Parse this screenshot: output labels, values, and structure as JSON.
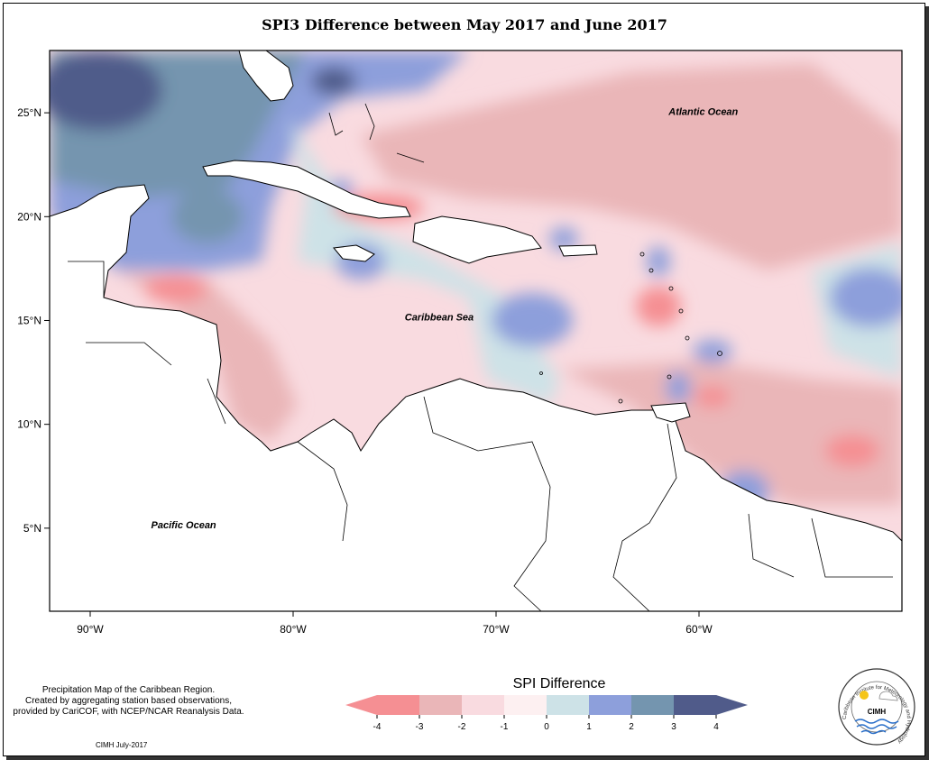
{
  "title": "SPI3 Difference between May 2017 and June 2017",
  "map": {
    "lon_range": [
      -92,
      -50
    ],
    "lat_range": [
      1,
      28
    ],
    "x_ticks": [
      {
        "value": -90,
        "label": "90°W"
      },
      {
        "value": -80,
        "label": "80°W"
      },
      {
        "value": -70,
        "label": "70°W"
      },
      {
        "value": -60,
        "label": "60°W"
      }
    ],
    "y_ticks": [
      {
        "value": 25,
        "label": "25°N"
      },
      {
        "value": 20,
        "label": "20°N"
      },
      {
        "value": 15,
        "label": "15°N"
      },
      {
        "value": 10,
        "label": "10°N"
      },
      {
        "value": 5,
        "label": "5°N"
      }
    ],
    "place_labels": [
      {
        "text": "Atlantic Ocean",
        "lon": -61.5,
        "lat": 24.9
      },
      {
        "text": "Caribbean Sea",
        "lon": -74.5,
        "lat": 15.0
      },
      {
        "text": "Pacific Ocean",
        "lon": -87.0,
        "lat": 5.0
      }
    ]
  },
  "legend": {
    "title": "SPI Difference",
    "ticks": [
      "-4",
      "-3",
      "-2",
      "-1",
      "0",
      "1",
      "2",
      "3",
      "4"
    ],
    "colors": [
      "#f58f93",
      "#eab6b8",
      "#f9dbe0",
      "#fdf0f1",
      "#cde2e7",
      "#8d9fdb",
      "#7495af",
      "#505b8a"
    ]
  },
  "notes": {
    "line1": "Precipitation Map of the Caribbean Region.",
    "line2": "Created by aggregating station based observations,",
    "line3": "provided by CariCOF, with NCEP/NCAR Reanalysis Data."
  },
  "footer": "CIMH July-2017",
  "logo": {
    "ring_text": "Caribbean Institute for Meteorology and Hydrology",
    "text": "CIMH"
  }
}
